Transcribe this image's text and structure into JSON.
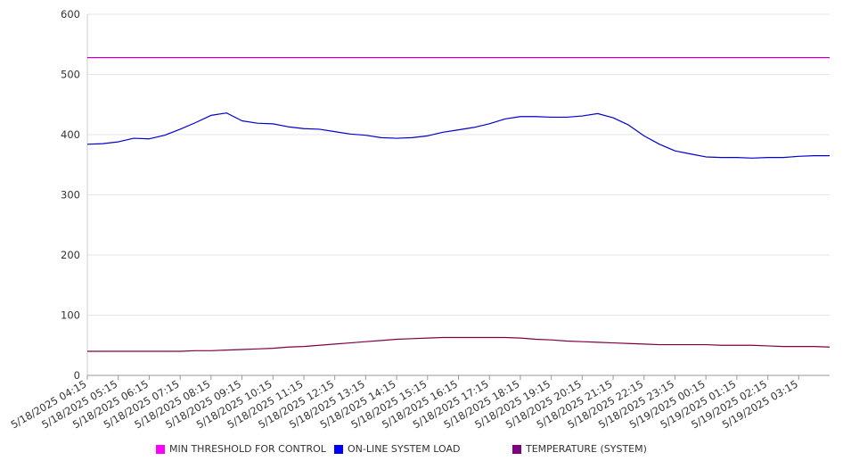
{
  "chart_data": {
    "type": "line",
    "title": "",
    "xlabel": "",
    "ylabel": "",
    "ylim": [
      0,
      600
    ],
    "y_ticks": [
      0,
      100,
      200,
      300,
      400,
      500,
      600
    ],
    "grid": true,
    "legend_position": "bottom",
    "x_tick_labels": [
      "5/18/2025 04:15",
      "5/18/2025 05:15",
      "5/18/2025 06:15",
      "5/18/2025 07:15",
      "5/18/2025 08:15",
      "5/18/2025 09:15",
      "5/18/2025 10:15",
      "5/18/2025 11:15",
      "5/18/2025 12:15",
      "5/18/2025 13:15",
      "5/18/2025 14:15",
      "5/18/2025 15:15",
      "5/18/2025 16:15",
      "5/18/2025 17:15",
      "5/18/2025 18:15",
      "5/18/2025 19:15",
      "5/18/2025 20:15",
      "5/18/2025 21:15",
      "5/18/2025 22:15",
      "5/18/2025 23:15",
      "5/19/2025 00:15",
      "5/19/2025 01:15",
      "5/19/2025 02:15",
      "5/19/2025 03:15"
    ],
    "x_hours_at_samples": [
      0,
      0.5,
      1,
      1.5,
      2,
      2.5,
      3,
      3.5,
      4,
      4.5,
      5,
      5.5,
      6,
      6.5,
      7,
      7.5,
      8,
      8.5,
      9,
      9.5,
      10,
      10.5,
      11,
      11.5,
      12,
      12.5,
      13,
      13.5,
      14,
      14.5,
      15,
      15.5,
      16,
      16.5,
      17,
      17.5,
      18,
      18.5,
      19,
      19.5,
      20,
      20.5,
      21,
      21.5,
      22,
      22.5,
      23,
      23.5,
      24
    ],
    "x_range_hours": [
      0,
      24
    ],
    "series": [
      {
        "name": "MIN THRESHOLD FOR CONTROL",
        "color": "#c000c0",
        "legend_color": "#ff00ff",
        "values": [
          528,
          528,
          528,
          528,
          528,
          528,
          528,
          528,
          528,
          528,
          528,
          528,
          528,
          528,
          528,
          528,
          528,
          528,
          528,
          528,
          528,
          528,
          528,
          528,
          528,
          528,
          528,
          528,
          528,
          528,
          528,
          528,
          528,
          528,
          528,
          528,
          528,
          528,
          528,
          528,
          528,
          528,
          528,
          528,
          528,
          528,
          528,
          528,
          528
        ]
      },
      {
        "name": "ON-LINE SYSTEM LOAD",
        "color": "#0000cc",
        "legend_color": "#0000ff",
        "values": [
          384,
          385,
          388,
          394,
          393,
          399,
          409,
          420,
          432,
          436,
          423,
          419,
          418,
          413,
          410,
          409,
          405,
          401,
          399,
          395,
          394,
          395,
          398,
          404,
          408,
          412,
          418,
          426,
          430,
          430,
          429,
          429,
          431,
          435,
          428,
          416,
          398,
          384,
          373,
          368,
          363,
          362,
          362,
          361,
          362,
          362,
          364,
          365,
          365
        ]
      },
      {
        "name": "TEMPERATURE (SYSTEM)",
        "color": "#800040",
        "legend_color": "#800080",
        "values": [
          40,
          40,
          40,
          40,
          40,
          40,
          40,
          41,
          41,
          42,
          43,
          44,
          45,
          47,
          48,
          50,
          52,
          54,
          56,
          58,
          60,
          61,
          62,
          63,
          63,
          63,
          63,
          63,
          62,
          60,
          59,
          57,
          56,
          55,
          54,
          53,
          52,
          51,
          51,
          51,
          51,
          50,
          50,
          50,
          49,
          48,
          48,
          48,
          47
        ]
      }
    ]
  }
}
